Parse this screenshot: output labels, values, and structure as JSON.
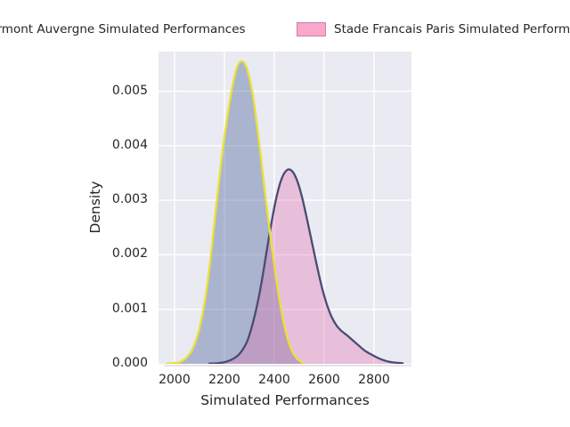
{
  "legend": {
    "items": [
      {
        "label": "Clermont Auvergne Simulated Performances",
        "swatch_fill": "#b5c0d5",
        "swatch_border": "#e9e136"
      },
      {
        "label": "Stade Francais Paris Simulated Performances",
        "swatch_fill": "#f9a8ca",
        "swatch_border": "#c97fae"
      }
    ]
  },
  "chart_data": {
    "type": "area",
    "subtype": "kde-density",
    "title": "",
    "xlabel": "Simulated Performances",
    "ylabel": "Density",
    "xlim": [
      1936,
      2950
    ],
    "ylim": [
      0,
      0.005726
    ],
    "grid": true,
    "background_color": "#eaeaf2",
    "grid_color": "#ffffff",
    "legend_position": "top-outside",
    "xticks": [
      {
        "value": 2000,
        "label": "2000"
      },
      {
        "value": 2200,
        "label": "2200"
      },
      {
        "value": 2400,
        "label": "2400"
      },
      {
        "value": 2600,
        "label": "2600"
      },
      {
        "value": 2800,
        "label": "2800"
      }
    ],
    "yticks": [
      {
        "value": 0.0,
        "label": "0.000"
      },
      {
        "value": 0.001,
        "label": "0.001"
      },
      {
        "value": 0.002,
        "label": "0.002"
      },
      {
        "value": 0.003,
        "label": "0.003"
      },
      {
        "value": 0.004,
        "label": "0.004"
      },
      {
        "value": 0.005,
        "label": "0.005"
      }
    ],
    "series": [
      {
        "name": "Clermont Auvergne Simulated Performances",
        "line_color": "#e9e136",
        "fill_color": "rgba(88,112,160,0.44)",
        "peak": {
          "x": 2268,
          "density": 0.00555
        },
        "points": [
          [
            1968,
            5e-06
          ],
          [
            1990,
            1e-05
          ],
          [
            2010,
            2e-05
          ],
          [
            2030,
            5e-05
          ],
          [
            2050,
            0.00012
          ],
          [
            2070,
            0.00025
          ],
          [
            2090,
            0.00048
          ],
          [
            2110,
            0.00085
          ],
          [
            2130,
            0.0014
          ],
          [
            2150,
            0.00215
          ],
          [
            2170,
            0.003
          ],
          [
            2190,
            0.0038
          ],
          [
            2210,
            0.00447
          ],
          [
            2230,
            0.00503
          ],
          [
            2250,
            0.00543
          ],
          [
            2268,
            0.00555
          ],
          [
            2285,
            0.00548
          ],
          [
            2300,
            0.00525
          ],
          [
            2315,
            0.0049
          ],
          [
            2330,
            0.0044
          ],
          [
            2345,
            0.00385
          ],
          [
            2360,
            0.00325
          ],
          [
            2375,
            0.00268
          ],
          [
            2390,
            0.00215
          ],
          [
            2405,
            0.00165
          ],
          [
            2420,
            0.0012
          ],
          [
            2435,
            0.00082
          ],
          [
            2450,
            0.00052
          ],
          [
            2465,
            0.0003
          ],
          [
            2480,
            0.00016
          ],
          [
            2495,
            8e-05
          ],
          [
            2510,
            3e-05
          ],
          [
            2518,
            1e-05
          ]
        ]
      },
      {
        "name": "Stade Francais Paris Simulated Performances",
        "line_color": "#4b4b73",
        "fill_color": "rgba(226,116,178,0.36)",
        "peak": {
          "x": 2455,
          "density": 0.00355
        },
        "points": [
          [
            2140,
            5e-06
          ],
          [
            2170,
            1e-05
          ],
          [
            2200,
            3e-05
          ],
          [
            2230,
            8e-05
          ],
          [
            2260,
            0.00018
          ],
          [
            2290,
            0.0004
          ],
          [
            2310,
            0.00068
          ],
          [
            2330,
            0.00105
          ],
          [
            2350,
            0.00152
          ],
          [
            2370,
            0.00208
          ],
          [
            2390,
            0.00262
          ],
          [
            2410,
            0.00308
          ],
          [
            2430,
            0.0034
          ],
          [
            2450,
            0.00355
          ],
          [
            2470,
            0.00354
          ],
          [
            2490,
            0.00338
          ],
          [
            2510,
            0.00308
          ],
          [
            2530,
            0.00268
          ],
          [
            2550,
            0.00225
          ],
          [
            2570,
            0.00182
          ],
          [
            2590,
            0.00142
          ],
          [
            2610,
            0.0011
          ],
          [
            2630,
            0.00086
          ],
          [
            2650,
            0.0007
          ],
          [
            2670,
            0.0006
          ],
          [
            2690,
            0.00053
          ],
          [
            2710,
            0.00045
          ],
          [
            2730,
            0.00037
          ],
          [
            2750,
            0.00029
          ],
          [
            2770,
            0.00022
          ],
          [
            2790,
            0.00017
          ],
          [
            2810,
            0.00012
          ],
          [
            2830,
            8e-05
          ],
          [
            2850,
            5e-05
          ],
          [
            2870,
            3e-05
          ],
          [
            2890,
            2e-05
          ],
          [
            2915,
            1e-05
          ]
        ]
      }
    ]
  }
}
